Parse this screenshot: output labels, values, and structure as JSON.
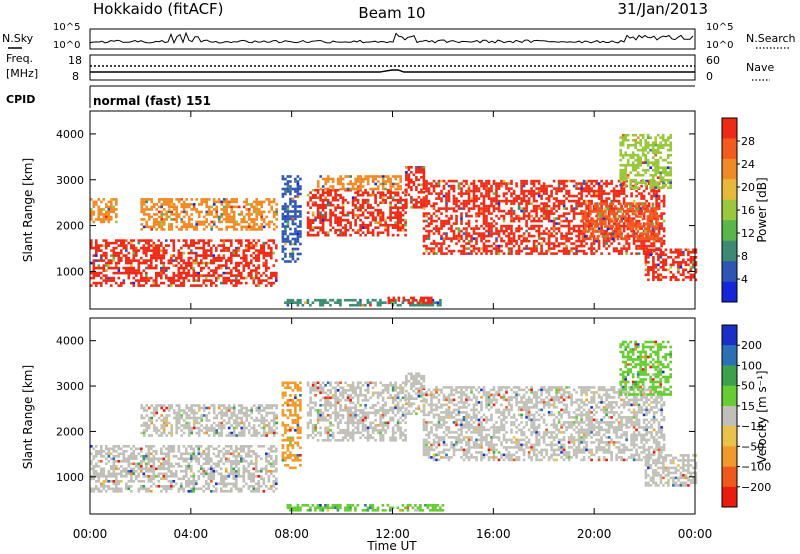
{
  "header": {
    "station": "Hokkaido (fitACF)",
    "beam": "Beam 10",
    "date": "31/Jan/2013"
  },
  "noise_panel": {
    "left_label": "N.Sky",
    "right_label": "N.Search",
    "ytick_top": "10^5",
    "ytick_bottom": "10^0"
  },
  "freq_panel": {
    "left_label_1": "Freq.",
    "left_label_2": "[MHz]",
    "right_label": "Nave",
    "left_ticks": [
      "18",
      "8"
    ],
    "right_ticks": [
      "60",
      "0"
    ]
  },
  "cpid_panel": {
    "label": "CPID",
    "mode": "normal (fast) 151"
  },
  "chart_data": [
    {
      "type": "heatmap",
      "name": "power",
      "ylabel": "Slant Range [km]",
      "ylim": [
        180,
        4500
      ],
      "y_ticks": [
        1000,
        2000,
        3000,
        4000
      ],
      "colorbar_label": "Power [dB]",
      "colorbar_ticks": [
        "4",
        "8",
        "12",
        "16",
        "20",
        "24",
        "28"
      ],
      "colors": [
        "#1426d8",
        "#2f55b2",
        "#3c8a72",
        "#58b64a",
        "#9ac83c",
        "#e6b93a",
        "#f08a26",
        "#f25a1e",
        "#ee2a16"
      ],
      "regions": [
        {
          "t0": 0.0,
          "t1": 1.0,
          "r0": 2100,
          "r1": 2600,
          "color": "#f08a26"
        },
        {
          "t0": 0.0,
          "t1": 7.4,
          "r0": 700,
          "r1": 1700,
          "color": "#ee2a16"
        },
        {
          "t0": 2.0,
          "t1": 7.4,
          "r0": 1900,
          "r1": 2600,
          "color": "#f08a26"
        },
        {
          "t0": 7.6,
          "t1": 8.3,
          "r0": 1200,
          "r1": 3100,
          "color": "#2f55b2"
        },
        {
          "t0": 8.6,
          "t1": 12.5,
          "r0": 1800,
          "r1": 2800,
          "color": "#ee2a16"
        },
        {
          "t0": 9.0,
          "t1": 12.3,
          "r0": 2800,
          "r1": 3100,
          "color": "#f08a26"
        },
        {
          "t0": 12.5,
          "t1": 13.2,
          "r0": 2400,
          "r1": 3300,
          "color": "#ee2a16"
        },
        {
          "t0": 13.2,
          "t1": 22.8,
          "r0": 1400,
          "r1": 3000,
          "color": "#ee2a16"
        },
        {
          "t0": 19.5,
          "t1": 22.5,
          "r0": 1700,
          "r1": 2500,
          "color": "#f25a1e"
        },
        {
          "t0": 22.0,
          "t1": 24.0,
          "r0": 800,
          "r1": 1500,
          "color": "#ee2a16"
        },
        {
          "t0": 21.0,
          "t1": 23.0,
          "r0": 2800,
          "r1": 4000,
          "color": "#9ac83c"
        },
        {
          "t0": 7.7,
          "t1": 14.0,
          "r0": 250,
          "r1": 400,
          "color": "#3c8a72"
        },
        {
          "t0": 11.8,
          "t1": 13.5,
          "r0": 300,
          "r1": 450,
          "color": "#ee2a16"
        }
      ]
    },
    {
      "type": "heatmap",
      "name": "velocity",
      "ylabel": "Slant Range [km]",
      "ylim": [
        180,
        4500
      ],
      "y_ticks": [
        1000,
        2000,
        3000,
        4000
      ],
      "colorbar_label": "Velocity [m s⁻¹]",
      "colorbar_ticks": [
        "200",
        "100",
        "50",
        "15",
        "−15",
        "−50",
        "−100",
        "−200"
      ],
      "colors": [
        "#1a2fc8",
        "#2d6fb4",
        "#3ca04c",
        "#66cc33",
        "#c0c0b8",
        "#e8c24a",
        "#f09a2a",
        "#ef5a1c",
        "#ea1c10"
      ],
      "regions": [
        {
          "t0": 0.0,
          "t1": 7.4,
          "r0": 700,
          "r1": 1700,
          "color": "#c0c0b8"
        },
        {
          "t0": 2.0,
          "t1": 7.4,
          "r0": 1900,
          "r1": 2600,
          "color": "#c0c0b8"
        },
        {
          "t0": 7.6,
          "t1": 8.3,
          "r0": 1200,
          "r1": 3100,
          "color": "#f09a2a"
        },
        {
          "t0": 8.6,
          "t1": 12.5,
          "r0": 1800,
          "r1": 3100,
          "color": "#c0c0b8"
        },
        {
          "t0": 12.5,
          "t1": 13.2,
          "r0": 2400,
          "r1": 3300,
          "color": "#c0c0b8"
        },
        {
          "t0": 13.2,
          "t1": 22.8,
          "r0": 1400,
          "r1": 3000,
          "color": "#c0c0b8"
        },
        {
          "t0": 22.0,
          "t1": 24.0,
          "r0": 800,
          "r1": 1500,
          "color": "#c0c0b8"
        },
        {
          "t0": 21.0,
          "t1": 23.0,
          "r0": 2800,
          "r1": 4000,
          "color": "#66cc33"
        },
        {
          "t0": 7.7,
          "t1": 14.0,
          "r0": 250,
          "r1": 400,
          "color": "#66cc33"
        }
      ]
    }
  ],
  "x_axis": {
    "label": "Time UT",
    "ticks": [
      "00:00",
      "04:00",
      "08:00",
      "12:00",
      "16:00",
      "20:00",
      "00:00"
    ],
    "tick_hours": [
      0,
      4,
      8,
      12,
      16,
      20,
      24
    ]
  }
}
